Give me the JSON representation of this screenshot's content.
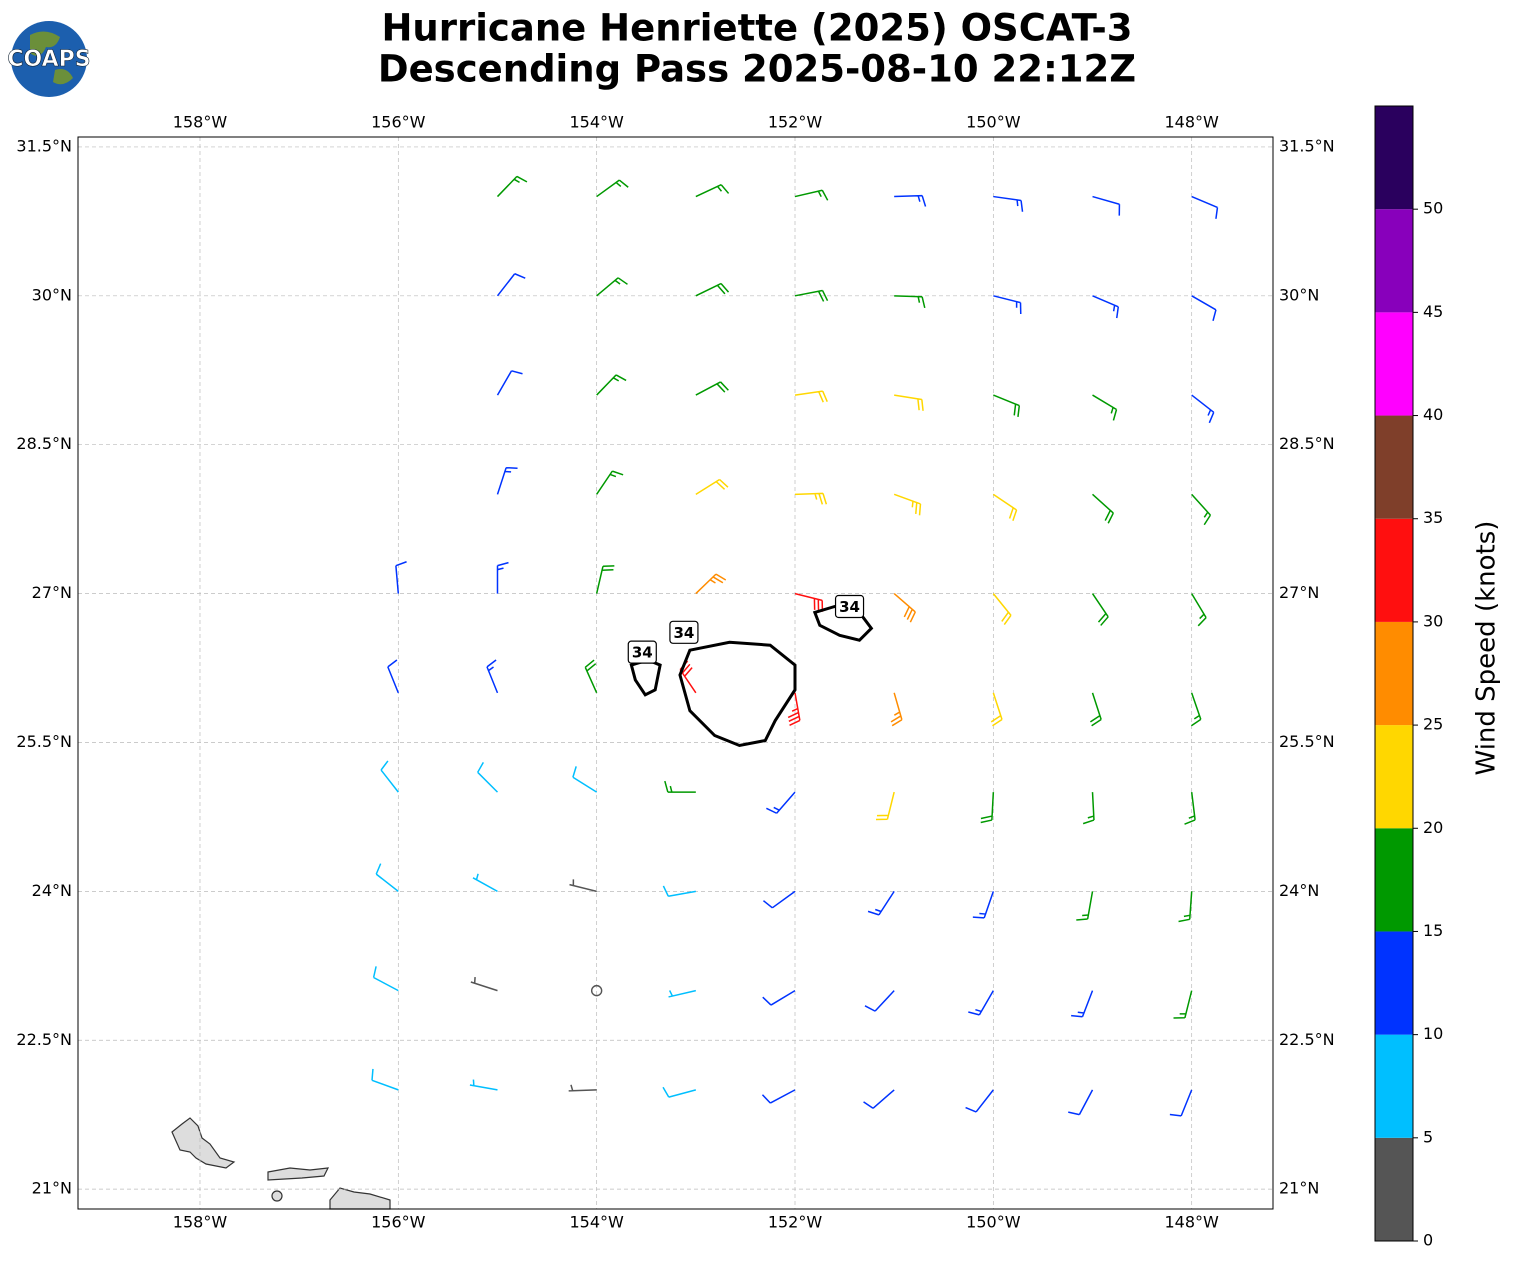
{
  "chart_data": {
    "type": "barbs",
    "title": [
      "Hurricane Henriette (2025) OSCAT-3",
      "Descending Pass 2025-08-10 22:12Z"
    ],
    "logo": "COAPS",
    "xlim": [
      -159.23,
      -147.18
    ],
    "ylim": [
      20.8,
      31.6
    ],
    "xticks": [
      {
        "value": -158,
        "label": "158°W"
      },
      {
        "value": -156,
        "label": "156°W"
      },
      {
        "value": -154,
        "label": "154°W"
      },
      {
        "value": -152,
        "label": "152°W"
      },
      {
        "value": -150,
        "label": "150°W"
      },
      {
        "value": -148,
        "label": "148°W"
      }
    ],
    "yticks": [
      {
        "value": 21,
        "label": "21°N"
      },
      {
        "value": 22.5,
        "label": "22.5°N"
      },
      {
        "value": 24,
        "label": "24°N"
      },
      {
        "value": 25.5,
        "label": "25.5°N"
      },
      {
        "value": 27,
        "label": "27°N"
      },
      {
        "value": 28.5,
        "label": "28.5°N"
      },
      {
        "value": 30,
        "label": "30°N"
      },
      {
        "value": 31.5,
        "label": "31.5°N"
      }
    ],
    "grid": true,
    "colorbar": {
      "label": "Wind Speed (knots)",
      "clim": [
        0,
        55
      ],
      "ticks": [
        0,
        5,
        10,
        15,
        20,
        25,
        30,
        35,
        40,
        45,
        50
      ],
      "bounds": [
        0,
        5,
        10,
        15,
        20,
        25,
        30,
        35,
        40,
        45,
        50,
        55
      ],
      "colors": [
        "#555555",
        "#00bfff",
        "#0033ff",
        "#009900",
        "#ffd700",
        "#ff8c00",
        "#ff0f0f",
        "#7f3f2a",
        "#ff00ff",
        "#8800bb",
        "#2a005e"
      ]
    },
    "barbs": {
      "lon": [
        -155,
        -154,
        -153,
        -152,
        -151,
        -150,
        -149,
        -148,
        -155,
        -154,
        -153,
        -152,
        -151,
        -150,
        -149,
        -148,
        -155,
        -154,
        -153,
        -152,
        -151,
        -150,
        -149,
        -148,
        -155,
        -154,
        -153,
        -152,
        -151,
        -150,
        -149,
        -148,
        -156,
        -155,
        -154,
        -153,
        -152,
        -151,
        -150,
        -149,
        -148,
        -156,
        -155,
        -154,
        -153,
        -152,
        -151,
        -150,
        -149,
        -148,
        -156,
        -155,
        -154,
        -153,
        -152,
        -151,
        -150,
        -149,
        -148,
        -156,
        -155,
        -154,
        -153,
        -152,
        -151,
        -150,
        -149,
        -148,
        -156,
        -155,
        -154,
        -153,
        -152,
        -151,
        -150,
        -149,
        -148,
        -156,
        -155,
        -154,
        -153,
        -152,
        -151,
        -150,
        -149,
        -148
      ],
      "lat": [
        31,
        31,
        31,
        31,
        31,
        31,
        31,
        31,
        30,
        30,
        30,
        30,
        30,
        30,
        30,
        30,
        29,
        29,
        29,
        29,
        29,
        29,
        29,
        29,
        28,
        28,
        28,
        28,
        28,
        28,
        28,
        28,
        27,
        27,
        27,
        27,
        27,
        27,
        27,
        27,
        27,
        26,
        26,
        26,
        26,
        26,
        26,
        26,
        26,
        26,
        25,
        25,
        25,
        25,
        25,
        25,
        25,
        25,
        25,
        24,
        24,
        24,
        24,
        24,
        24,
        24,
        24,
        24,
        23,
        23,
        23,
        23,
        23,
        23,
        23,
        23,
        23,
        22,
        22,
        22,
        22,
        22,
        22,
        22,
        22,
        22
      ],
      "speed": [
        15,
        16,
        17,
        16,
        14,
        13,
        12,
        12,
        12,
        16,
        18,
        18,
        16,
        14,
        13,
        11,
        12,
        17,
        19,
        21,
        21,
        19,
        17,
        14,
        13,
        17,
        21,
        23,
        23,
        21,
        18,
        16,
        12,
        14,
        19,
        27,
        31,
        28,
        22,
        19,
        17,
        11,
        13,
        18,
        32,
        33,
        27,
        22,
        19,
        17,
        9,
        9,
        8,
        17,
        14,
        22,
        19,
        17,
        16,
        8,
        7,
        4,
        8,
        12,
        13,
        14,
        16,
        16,
        8,
        3,
        2,
        6,
        11,
        12,
        13,
        14,
        15,
        8,
        6,
        4,
        8,
        11,
        12,
        12,
        12,
        12
      ],
      "direction": [
        44,
        54,
        65,
        77,
        88,
        98,
        106,
        113,
        38,
        50,
        64,
        79,
        92,
        104,
        113,
        120,
        30,
        44,
        62,
        82,
        99,
        112,
        121,
        128,
        18,
        34,
        58,
        88,
        110,
        124,
        132,
        138,
        355,
        0,
        13,
        46,
        104,
        131,
        141,
        146,
        149,
        338,
        338,
        336,
        326,
        170,
        164,
        162,
        162,
        161,
        322,
        315,
        302,
        270,
        221,
        194,
        183,
        177,
        173,
        308,
        299,
        284,
        260,
        234,
        213,
        199,
        190,
        184,
        298,
        288,
        274,
        257,
        239,
        223,
        210,
        201,
        194,
        290,
        280,
        268,
        255,
        242,
        229,
        218,
        208,
        202
      ]
    },
    "contour": {
      "level": 34,
      "lines": [
        {
          "lon": [
            -153.06,
            -152.66,
            -152.25,
            -152.0,
            -152.0,
            -152.2,
            -152.3,
            -152.56,
            -152.81,
            -153.06,
            -153.16
          ],
          "lat": [
            26.43,
            26.51,
            26.48,
            26.28,
            26.03,
            25.72,
            25.52,
            25.47,
            25.57,
            25.82,
            26.18
          ],
          "label_lon": -153.12,
          "label_lat": 26.61
        },
        {
          "lon": [
            -153.65,
            -153.48,
            -153.36,
            -153.41,
            -153.51,
            -153.61
          ],
          "lat": [
            26.28,
            26.33,
            26.28,
            26.03,
            25.98,
            26.13
          ],
          "label_lon": -153.54,
          "label_lat": 26.41
        },
        {
          "lon": [
            -151.8,
            -151.6,
            -151.35,
            -151.23,
            -151.35,
            -151.55,
            -151.75
          ],
          "lat": [
            26.81,
            26.87,
            26.81,
            26.65,
            26.53,
            26.58,
            26.68
          ],
          "label_lon": -151.45,
          "label_lat": 26.87
        }
      ]
    }
  }
}
